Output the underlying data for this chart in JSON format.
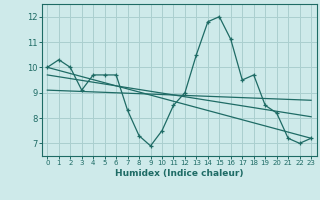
{
  "xlabel": "Humidex (Indice chaleur)",
  "bg_color": "#ceeaea",
  "grid_color": "#aacfcf",
  "line_color": "#1e6b65",
  "xlim": [
    -0.5,
    23.5
  ],
  "ylim": [
    6.5,
    12.5
  ],
  "yticks": [
    7,
    8,
    9,
    10,
    11,
    12
  ],
  "xticks": [
    0,
    1,
    2,
    3,
    4,
    5,
    6,
    7,
    8,
    9,
    10,
    11,
    12,
    13,
    14,
    15,
    16,
    17,
    18,
    19,
    20,
    21,
    22,
    23
  ],
  "series1_x": [
    0,
    1,
    2,
    3,
    4,
    5,
    6,
    7,
    8,
    9,
    10,
    11,
    12,
    13,
    14,
    15,
    16,
    17,
    18,
    19,
    20,
    21,
    22,
    23
  ],
  "series1_y": [
    10.0,
    10.3,
    10.0,
    9.1,
    9.7,
    9.7,
    9.7,
    8.3,
    7.3,
    6.9,
    7.5,
    8.5,
    9.0,
    10.5,
    11.8,
    12.0,
    11.1,
    9.5,
    9.7,
    8.5,
    8.2,
    7.2,
    7.0,
    7.2
  ],
  "series2_x": [
    0,
    23
  ],
  "series2_y": [
    10.0,
    7.2
  ],
  "series3_x": [
    0,
    23
  ],
  "series3_y": [
    9.7,
    8.05
  ],
  "series4_x": [
    0,
    23
  ],
  "series4_y": [
    9.1,
    8.7
  ]
}
